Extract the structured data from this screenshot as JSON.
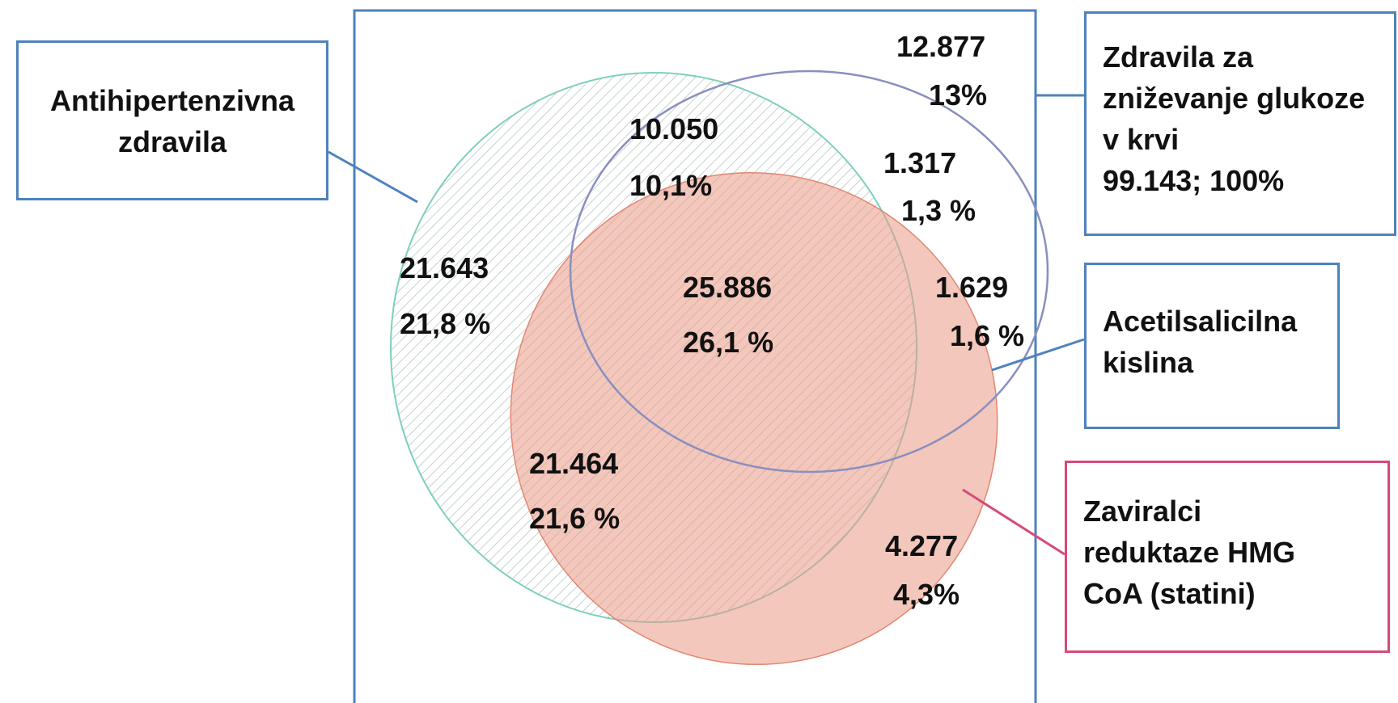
{
  "colors": {
    "frame": "#4f81bd",
    "antihypertensive": "#7fcfbf",
    "glucose": "#8a8fbf",
    "statins": "#ea9985",
    "statins_box": "#d64a7a"
  },
  "legend": {
    "antihypertensive": {
      "line1": "Antihipertenzivna",
      "line2": "zdravila"
    },
    "glucose": {
      "line1": "Zdravila za",
      "line2": "zniževanje glukoze",
      "line3": "v krvi",
      "line4": "99.143; 100%"
    },
    "asa": {
      "line1": "Acetilsalicilna",
      "line2": "kislina"
    },
    "statins": {
      "line1": "Zaviralci",
      "line2": "reduktaze HMG",
      "line3": "CoA (statini)"
    }
  },
  "regions": {
    "glucose_only": {
      "count": "12.877",
      "pct": "13%"
    },
    "glucose_antihyp": {
      "count": "10.050",
      "pct": "10,1%"
    },
    "glucose_asa": {
      "count": "1.317",
      "pct": "1,3 %"
    },
    "antihyp_only": {
      "count": "21.643",
      "pct": "21,8 %"
    },
    "all_center": {
      "count": "25.886",
      "pct": "26,1 %"
    },
    "asa_statins": {
      "count": "1.629",
      "pct": "1,6 %"
    },
    "antihyp_statins": {
      "count": "21.464",
      "pct": "21,6 %"
    },
    "statins_only": {
      "count": "4.277",
      "pct": "4,3%"
    }
  }
}
